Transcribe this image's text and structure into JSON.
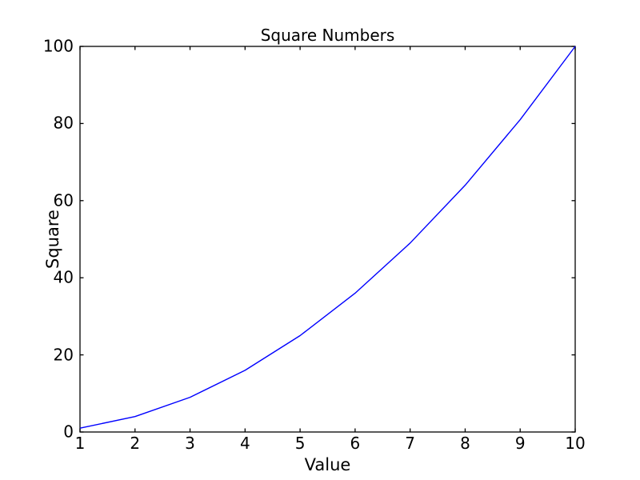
{
  "figure": {
    "background": "#ffffff"
  },
  "chart_data": {
    "type": "line",
    "title": "Square Numbers",
    "xlabel": "Value",
    "ylabel": "Square",
    "x": [
      1,
      2,
      3,
      4,
      5,
      6,
      7,
      8,
      9,
      10
    ],
    "y": [
      1,
      4,
      9,
      16,
      25,
      36,
      49,
      64,
      81,
      100
    ],
    "xlim": [
      1,
      10
    ],
    "ylim": [
      0,
      100
    ],
    "xticks": [
      1,
      2,
      3,
      4,
      5,
      6,
      7,
      8,
      9,
      10
    ],
    "yticks": [
      0,
      20,
      40,
      60,
      80,
      100
    ],
    "grid": false,
    "legend": false,
    "line_color": "#0000ff",
    "axis_color": "#000000",
    "text_color": "#000000"
  }
}
